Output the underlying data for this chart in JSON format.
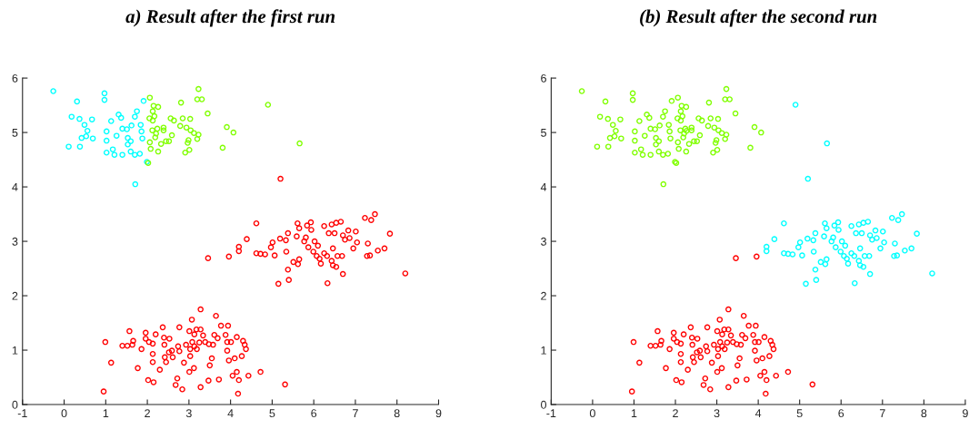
{
  "chart_data": [
    {
      "type": "scatter",
      "title": "a) Result after the first run",
      "xlim": [
        -1,
        9
      ],
      "ylim": [
        0,
        6
      ],
      "xticks": [
        -1,
        0,
        1,
        2,
        3,
        4,
        5,
        6,
        7,
        8,
        9
      ],
      "yticks": [
        0,
        1,
        2,
        3,
        4,
        5,
        6
      ],
      "marker": "circle",
      "grid": false,
      "series": [
        {
          "color": "#00ffff",
          "x": [
            -0.26,
            0.31,
            0.18,
            0.37,
            0.67,
            0.11,
            0.38,
            0.49,
            0.56,
            0.42,
            0.53,
            0.69,
            0.97,
            0.97,
            1.02,
            1.02,
            1.02,
            1.13,
            1.17,
            1.21,
            1.26,
            1.31,
            1.37,
            1.4,
            1.4,
            1.51,
            1.53,
            1.53,
            1.6,
            1.62,
            1.6,
            1.7,
            1.75,
            1.84,
            1.86,
            1.88,
            1.82,
            1.91,
            1.71,
            1.99,
            1.7
          ],
          "values": [
            5.76,
            5.57,
            5.29,
            5.25,
            5.24,
            4.74,
            4.74,
            5.14,
            5.03,
            4.9,
            4.93,
            4.89,
            5.72,
            5.6,
            5.02,
            4.85,
            4.63,
            5.21,
            4.69,
            4.59,
            4.94,
            5.33,
            5.27,
            5.07,
            4.59,
            5.06,
            4.9,
            4.78,
            4.84,
            5.13,
            4.65,
            5.29,
            5.39,
            5.14,
            5.02,
            4.89,
            4.61,
            5.58,
            4.05,
            4.46,
            4.59
          ]
        },
        {
          "color": "#80ff00",
          "x": [
            2.06,
            2.15,
            2.26,
            2.13,
            2.17,
            2.05,
            2.13,
            2.12,
            2.24,
            2.21,
            2.39,
            2.39,
            2.19,
            2.06,
            2.33,
            2.08,
            2.26,
            2.02,
            2.45,
            2.52,
            2.59,
            2.56,
            2.64,
            2.81,
            2.85,
            2.79,
            2.94,
            3.03,
            3.04,
            3.12,
            2.99,
            2.97,
            2.91,
            3.01,
            3.23,
            3.2,
            3.31,
            3.23,
            3.2,
            3.45,
            3.81,
            3.91,
            4.07,
            4.9,
            5.66
          ],
          "values": [
            5.64,
            5.49,
            5.47,
            5.39,
            5.3,
            5.26,
            5.22,
            5.04,
            5.07,
            4.98,
            5.09,
            5.04,
            4.91,
            4.82,
            4.79,
            4.7,
            4.65,
            4.44,
            4.84,
            4.84,
            4.95,
            5.26,
            5.22,
            5.55,
            5.26,
            5.12,
            5.09,
            5.25,
            5.04,
            4.99,
            4.86,
            4.81,
            4.63,
            4.68,
            5.8,
            5.61,
            5.61,
            4.96,
            4.88,
            5.35,
            4.72,
            5.1,
            5.0,
            5.51,
            4.8
          ]
        },
        {
          "color": "#ff0000",
          "x": [
            3.46,
            3.96,
            4.62,
            4.39,
            4.2,
            4.2,
            4.62,
            4.72,
            4.83,
            4.97,
            5.01,
            5.06,
            5.19,
            5.33,
            5.34,
            5.38,
            5.51,
            5.62,
            5.65,
            5.38,
            5.4,
            5.15,
            5.61,
            5.65,
            5.84,
            5.93,
            5.94,
            5.59,
            5.77,
            5.81,
            5.87,
            6.02,
            6.1,
            5.99,
            6.07,
            6.14,
            6.25,
            6.17,
            6.32,
            6.43,
            6.46,
            6.54,
            6.25,
            6.36,
            6.5,
            6.43,
            6.54,
            6.65,
            6.46,
            6.57,
            6.68,
            6.7,
            6.33,
            6.7,
            6.75,
            6.83,
            6.86,
            7.01,
            7.04,
            6.95,
            7.23,
            7.38,
            7.47,
            7.3,
            7.28,
            7.35,
            7.54,
            7.7,
            7.83,
            8.2,
            5.2,
            3.28,
            3.65,
            3.07,
            2.37,
            2.77,
            3.77,
            3.94,
            1.57,
            1.96,
            2.2,
            3.01,
            3.18,
            3.28,
            3.13,
            3.34,
            3.61,
            3.88,
            4.15,
            4.3,
            1.66,
            1.96,
            0.99,
            1.4,
            1.52,
            1.64,
            2.04,
            2.13,
            2.4,
            2.53,
            2.41,
            2.74,
            2.93,
            3.08,
            3.13,
            3.25,
            3.39,
            3.48,
            3.58,
            3.69,
            3.92,
            4.01,
            4.34,
            4.37,
            1.86,
            2.13,
            2.52,
            2.59,
            2.77,
            3.03,
            3.19,
            3.03,
            2.42,
            2.61,
            2.13,
            2.45,
            2.88,
            3.55,
            3.92,
            4.27,
            3.96,
            4.1,
            1.13,
            1.77,
            2.3,
            3.01,
            3.12,
            3.5,
            4.15,
            4.05,
            4.2,
            4.43,
            4.72,
            2.02,
            2.15,
            2.72,
            2.68,
            2.84,
            3.28,
            3.47,
            3.72,
            5.31,
            4.18,
            0.95
          ],
          "values": [
            2.69,
            2.72,
            3.33,
            3.04,
            2.9,
            2.82,
            2.78,
            2.77,
            2.76,
            2.89,
            2.98,
            2.74,
            3.05,
            3.02,
            2.81,
            3.15,
            2.62,
            2.58,
            2.67,
            2.48,
            2.29,
            2.22,
            3.33,
            3.24,
            3.29,
            3.35,
            3.21,
            3.09,
            3.0,
            3.07,
            2.89,
            3.0,
            2.92,
            2.81,
            2.73,
            2.68,
            2.78,
            2.59,
            2.73,
            2.64,
            2.56,
            2.53,
            3.28,
            3.15,
            3.15,
            3.31,
            3.34,
            3.36,
            2.87,
            2.73,
            2.73,
            2.4,
            2.23,
            3.11,
            3.03,
            3.2,
            3.06,
            3.18,
            2.98,
            2.87,
            3.43,
            3.39,
            3.5,
            2.96,
            2.73,
            2.74,
            2.83,
            2.87,
            3.14,
            2.41,
            4.15,
            1.75,
            1.63,
            1.56,
            1.42,
            1.42,
            1.45,
            1.45,
            1.35,
            1.32,
            1.29,
            1.35,
            1.38,
            1.38,
            1.29,
            1.27,
            1.28,
            1.28,
            1.24,
            1.17,
            1.17,
            1.21,
            1.15,
            1.08,
            1.08,
            1.1,
            1.15,
            1.12,
            1.23,
            1.21,
            1.1,
            1.07,
            1.1,
            1.15,
            1.07,
            1.14,
            1.15,
            1.11,
            1.1,
            1.22,
            1.15,
            1.15,
            1.1,
            1.02,
            1.02,
            0.93,
            0.96,
            0.99,
            0.98,
            1.02,
            1.02,
            0.89,
            0.87,
            0.87,
            0.78,
            0.78,
            0.77,
            0.85,
            0.99,
            0.89,
            0.81,
            0.85,
            0.77,
            0.67,
            0.64,
            0.6,
            0.67,
            0.72,
            0.6,
            0.53,
            0.45,
            0.53,
            0.6,
            0.45,
            0.41,
            0.48,
            0.36,
            0.28,
            0.32,
            0.44,
            0.46,
            0.37,
            0.2,
            0.24
          ]
        }
      ]
    },
    {
      "type": "scatter",
      "title": "(b) Result after the second run",
      "xlim": [
        -1,
        9
      ],
      "ylim": [
        0,
        6
      ],
      "xticks": [
        -1,
        0,
        1,
        2,
        3,
        4,
        5,
        6,
        7,
        8,
        9
      ],
      "yticks": [
        0,
        1,
        2,
        3,
        4,
        5,
        6
      ],
      "marker": "circle",
      "grid": false,
      "series": [
        {
          "color": "#80ff00",
          "x": [
            -0.26,
            0.31,
            0.18,
            0.37,
            0.67,
            0.11,
            0.38,
            0.49,
            0.56,
            0.42,
            0.53,
            0.69,
            0.97,
            0.97,
            1.02,
            1.02,
            1.02,
            1.13,
            1.17,
            1.21,
            1.26,
            1.31,
            1.37,
            1.4,
            1.4,
            1.51,
            1.53,
            1.53,
            1.6,
            1.62,
            1.6,
            1.7,
            1.75,
            1.84,
            1.86,
            1.88,
            1.82,
            1.91,
            1.71,
            1.99,
            1.7,
            2.06,
            2.15,
            2.26,
            2.13,
            2.17,
            2.05,
            2.13,
            2.12,
            2.24,
            2.27,
            2.21,
            2.39,
            2.39,
            2.19,
            2.06,
            2.33,
            2.08,
            2.26,
            2.02,
            2.45,
            2.52,
            2.59,
            2.56,
            2.64,
            2.81,
            2.85,
            2.79,
            2.94,
            3.03,
            3.04,
            3.12,
            2.99,
            2.97,
            2.91,
            3.01,
            3.23,
            3.2,
            3.31,
            3.23,
            3.2,
            3.45,
            3.81,
            3.91,
            4.07
          ],
          "values": [
            5.76,
            5.57,
            5.29,
            5.25,
            5.24,
            4.74,
            4.74,
            5.14,
            5.03,
            4.9,
            4.93,
            4.89,
            5.72,
            5.6,
            5.02,
            4.85,
            4.63,
            5.21,
            4.69,
            4.59,
            4.94,
            5.33,
            5.27,
            5.07,
            4.59,
            5.06,
            4.9,
            4.78,
            4.84,
            5.13,
            4.65,
            5.29,
            5.39,
            5.14,
            5.02,
            4.89,
            4.61,
            5.58,
            4.05,
            4.46,
            4.59,
            5.64,
            5.49,
            5.47,
            5.39,
            5.3,
            5.26,
            5.22,
            5.04,
            5.07,
            5.03,
            4.98,
            5.09,
            5.04,
            4.91,
            4.82,
            4.79,
            4.7,
            4.65,
            4.44,
            4.84,
            4.84,
            4.95,
            5.26,
            5.22,
            5.55,
            5.26,
            5.12,
            5.09,
            5.25,
            5.04,
            4.99,
            4.86,
            4.81,
            4.63,
            4.68,
            5.8,
            5.61,
            5.61,
            4.96,
            4.88,
            5.35,
            4.72,
            5.1,
            5.0
          ]
        },
        {
          "color": "#00ffff",
          "x": [
            4.9,
            5.66,
            5.2,
            4.62,
            4.39,
            4.2,
            4.2,
            4.62,
            4.72,
            4.83,
            4.97,
            5.01,
            5.06,
            5.19,
            5.33,
            5.34,
            5.38,
            5.51,
            5.62,
            5.65,
            5.38,
            5.4,
            5.15,
            5.61,
            5.65,
            5.84,
            5.93,
            5.94,
            5.59,
            5.77,
            5.81,
            5.87,
            6.02,
            6.1,
            5.99,
            6.07,
            6.14,
            6.25,
            6.17,
            6.32,
            6.43,
            6.46,
            6.54,
            6.25,
            6.36,
            6.5,
            6.43,
            6.54,
            6.65,
            6.46,
            6.57,
            6.68,
            6.7,
            6.33,
            6.7,
            6.75,
            6.83,
            6.86,
            7.01,
            7.04,
            6.95,
            7.23,
            7.38,
            7.47,
            7.3,
            7.28,
            7.35,
            7.54,
            7.7,
            7.83,
            8.2
          ],
          "values": [
            5.51,
            4.8,
            4.15,
            3.33,
            3.04,
            2.9,
            2.82,
            2.78,
            2.77,
            2.76,
            2.89,
            2.98,
            2.74,
            3.05,
            3.02,
            2.81,
            3.15,
            2.62,
            2.58,
            2.67,
            2.48,
            2.29,
            2.22,
            3.33,
            3.24,
            3.29,
            3.35,
            3.21,
            3.09,
            3.0,
            3.07,
            2.89,
            3.0,
            2.92,
            2.81,
            2.73,
            2.68,
            2.78,
            2.59,
            2.73,
            2.64,
            2.56,
            2.53,
            3.28,
            3.15,
            3.15,
            3.31,
            3.34,
            3.36,
            2.87,
            2.73,
            2.73,
            2.4,
            2.23,
            3.11,
            3.03,
            3.2,
            3.06,
            3.18,
            2.98,
            2.87,
            3.43,
            3.39,
            3.5,
            2.96,
            2.73,
            2.74,
            2.83,
            2.87,
            3.14,
            2.41
          ]
        },
        {
          "color": "#ff0000",
          "x": [
            3.46,
            3.96,
            3.28,
            3.65,
            3.07,
            2.37,
            2.77,
            3.77,
            3.94,
            1.57,
            1.96,
            2.2,
            3.01,
            3.18,
            3.28,
            3.13,
            3.34,
            3.61,
            3.88,
            4.15,
            4.3,
            1.66,
            1.96,
            0.99,
            1.4,
            1.52,
            1.64,
            2.04,
            2.13,
            2.4,
            2.53,
            2.41,
            2.74,
            2.93,
            3.08,
            3.13,
            3.25,
            3.39,
            3.48,
            3.58,
            3.69,
            3.92,
            4.01,
            4.34,
            4.37,
            1.86,
            2.13,
            2.52,
            2.59,
            2.77,
            3.03,
            3.19,
            3.03,
            2.42,
            2.61,
            2.13,
            2.45,
            2.88,
            3.55,
            3.92,
            4.27,
            3.96,
            4.1,
            1.13,
            1.77,
            2.3,
            3.01,
            3.12,
            3.5,
            4.15,
            4.05,
            4.2,
            4.43,
            4.72,
            2.02,
            2.15,
            2.72,
            2.68,
            2.84,
            3.28,
            3.47,
            3.72,
            5.31,
            4.18,
            0.95
          ],
          "values": [
            2.69,
            2.72,
            1.75,
            1.63,
            1.56,
            1.42,
            1.42,
            1.45,
            1.45,
            1.35,
            1.32,
            1.29,
            1.35,
            1.38,
            1.38,
            1.29,
            1.27,
            1.28,
            1.28,
            1.24,
            1.17,
            1.17,
            1.21,
            1.15,
            1.08,
            1.08,
            1.1,
            1.15,
            1.12,
            1.23,
            1.21,
            1.1,
            1.07,
            1.1,
            1.15,
            1.07,
            1.14,
            1.15,
            1.11,
            1.1,
            1.22,
            1.15,
            1.15,
            1.1,
            1.02,
            1.02,
            0.93,
            0.96,
            0.99,
            0.98,
            1.02,
            1.02,
            0.89,
            0.87,
            0.87,
            0.78,
            0.78,
            0.77,
            0.85,
            0.99,
            0.89,
            0.81,
            0.85,
            0.77,
            0.67,
            0.64,
            0.6,
            0.67,
            0.72,
            0.6,
            0.53,
            0.45,
            0.53,
            0.6,
            0.45,
            0.41,
            0.48,
            0.36,
            0.28,
            0.32,
            0.44,
            0.46,
            0.37,
            0.2,
            0.24
          ]
        }
      ]
    }
  ]
}
